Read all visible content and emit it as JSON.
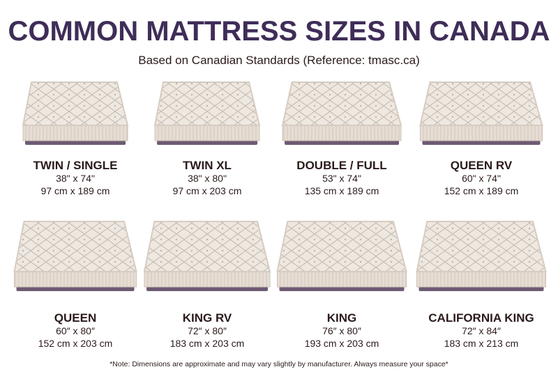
{
  "header": {
    "title": "COMMON MATTRESS SIZES IN CANADA",
    "subtitle": "Based on Canadian Standards (Reference: tmasc.ca)"
  },
  "items": [
    {
      "name": "TWIN / SINGLE",
      "imperial": "38\" x 74\"",
      "metric": "97 cm x 189 cm"
    },
    {
      "name": "TWIN XL",
      "imperial": "38\" x 80\"",
      "metric": "97 cm x 203 cm"
    },
    {
      "name": "DOUBLE / FULL",
      "imperial": "53\" x 74\"",
      "metric": "135 cm x 189 cm"
    },
    {
      "name": "QUEEN RV",
      "imperial": "60\" x 74\"",
      "metric": "152 cm x 189 cm"
    },
    {
      "name": "QUEEN",
      "imperial": "60″ x 80″",
      "metric": "152 cm x 203 cm"
    },
    {
      "name": "KING RV",
      "imperial": "72″ x 80″",
      "metric": "183 cm x 203 cm"
    },
    {
      "name": "KING",
      "imperial": "76″ x 80″",
      "metric": "193 cm x 203 cm"
    },
    {
      "name": "CALIFORNIA KING",
      "imperial": "72″ x 84″",
      "metric": "183 cm x 213 cm"
    }
  ],
  "footnote": "*Note: Dimensions are approximate and may vary slightly by manufacturer. Always measure your space*"
}
